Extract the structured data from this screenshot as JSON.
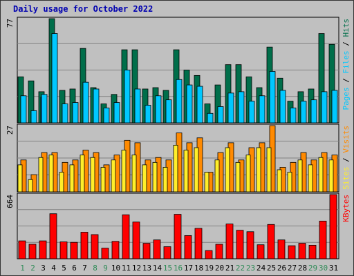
{
  "title": "Daily usage for October 2022",
  "colors": {
    "hits": "#006e4a",
    "files": "#00c8ff",
    "pages": "#0a3aff",
    "visits": "#ff8a00",
    "sites": "#ffee2a",
    "kbytes": "#ff0000",
    "weekday": "#000000",
    "weekend": "#2e8b57",
    "background": "#c0c0c0"
  },
  "chart_data": [
    {
      "type": "bar",
      "panel": "top",
      "axis_max_label": "77",
      "ylim": [
        0,
        77
      ],
      "grid": true,
      "categories": [
        "1",
        "2",
        "3",
        "4",
        "5",
        "6",
        "7",
        "8",
        "9",
        "10",
        "11",
        "12",
        "13",
        "14",
        "15",
        "16",
        "17",
        "18",
        "19",
        "20",
        "21",
        "22",
        "23",
        "24",
        "25",
        "26",
        "27",
        "28",
        "29",
        "30",
        "31"
      ],
      "weekend_days": [
        "1",
        "2",
        "8",
        "9",
        "15",
        "16",
        "22",
        "23",
        "29",
        "30"
      ],
      "series": [
        {
          "name": "Hits",
          "values": [
            34,
            31,
            23,
            77,
            24,
            25,
            55,
            26,
            14,
            21,
            54,
            54,
            25,
            26,
            24,
            54,
            39,
            35,
            14,
            28,
            43,
            43,
            34,
            26,
            56,
            33,
            16,
            23,
            25,
            66,
            58
          ]
        },
        {
          "name": "Files",
          "values": [
            20,
            9,
            21,
            66,
            14,
            15,
            30,
            25,
            11,
            15,
            39,
            25,
            13,
            20,
            17,
            32,
            28,
            27,
            7,
            12,
            22,
            23,
            16,
            20,
            38,
            24,
            11,
            16,
            17,
            23,
            24
          ]
        },
        {
          "name": "Pages",
          "values": [
            0,
            0,
            19,
            0,
            0,
            0,
            0,
            0,
            0,
            0,
            0,
            0,
            0,
            0,
            0,
            0,
            0,
            0,
            0,
            0,
            0,
            0,
            0,
            0,
            0,
            0,
            0,
            0,
            0,
            0,
            0
          ]
        }
      ],
      "right_labels": [
        "Pages",
        "Files",
        "Hits"
      ]
    },
    {
      "type": "bar",
      "panel": "middle",
      "axis_max_label": "27",
      "ylim": [
        0,
        27
      ],
      "grid": true,
      "categories": [
        "1",
        "2",
        "3",
        "4",
        "5",
        "6",
        "7",
        "8",
        "9",
        "10",
        "11",
        "12",
        "13",
        "14",
        "15",
        "16",
        "17",
        "18",
        "19",
        "20",
        "21",
        "22",
        "23",
        "24",
        "25",
        "26",
        "27",
        "28",
        "29",
        "30",
        "31"
      ],
      "series": [
        {
          "name": "Visits",
          "values": [
            13,
            7,
            16,
            16,
            12,
            13,
            17,
            16,
            11,
            15,
            21,
            20,
            13,
            14,
            13,
            24,
            20,
            22,
            8,
            16,
            20,
            13,
            18,
            20,
            27,
            10,
            12,
            16,
            13,
            16,
            15
          ]
        },
        {
          "name": "Sites",
          "values": [
            11,
            5,
            14,
            15,
            8,
            11,
            15,
            14,
            10,
            13,
            17,
            15,
            11,
            12,
            10,
            19,
            17,
            18,
            8,
            13,
            18,
            12,
            15,
            18,
            18,
            9,
            8,
            13,
            11,
            14,
            13
          ]
        }
      ],
      "right_labels": [
        "Sites",
        "Visits"
      ]
    },
    {
      "type": "bar",
      "panel": "bottom",
      "axis_max_label": "664",
      "ylim": [
        0,
        664
      ],
      "grid": true,
      "categories": [
        "1",
        "2",
        "3",
        "4",
        "5",
        "6",
        "7",
        "8",
        "9",
        "10",
        "11",
        "12",
        "13",
        "14",
        "15",
        "16",
        "17",
        "18",
        "19",
        "20",
        "21",
        "22",
        "23",
        "24",
        "25",
        "26",
        "27",
        "28",
        "29",
        "30",
        "31"
      ],
      "series": [
        {
          "name": "KBytes",
          "values": [
            185,
            150,
            185,
            466,
            175,
            170,
            275,
            250,
            110,
            180,
            455,
            380,
            160,
            195,
            125,
            460,
            240,
            315,
            85,
            150,
            360,
            295,
            280,
            145,
            355,
            195,
            135,
            160,
            140,
            390,
            664
          ]
        }
      ],
      "right_labels": [
        "KBytes"
      ]
    }
  ]
}
